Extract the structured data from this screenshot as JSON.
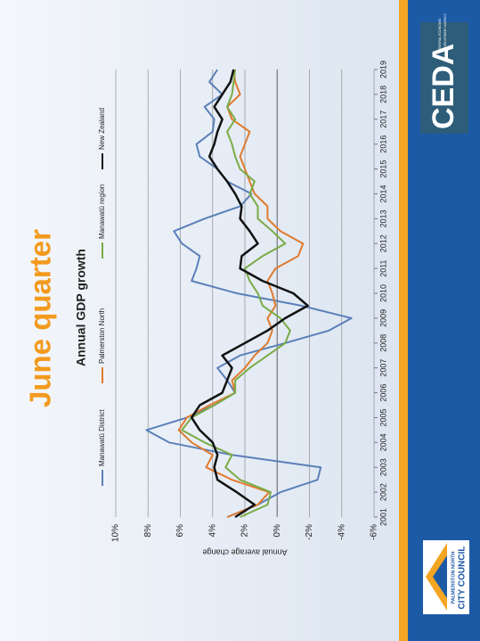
{
  "slide": {
    "heading": "June quarter",
    "ceda_logo": {
      "name": "CEDA",
      "line1": "CENTRAL ECONOMIC",
      "line2": "DEVELOPMENT AGENCY"
    },
    "council_logo": {
      "line1": "PALMERSTON NORTH",
      "line2": "CITY COUNCIL"
    }
  },
  "chart_data": {
    "type": "line",
    "title": "Annual GDP growth",
    "y_label": "Annual average change",
    "x": [
      2001,
      2001.5,
      2002,
      2002.5,
      2003,
      2003.5,
      2004,
      2004.5,
      2005,
      2005.5,
      2006,
      2006.5,
      2007,
      2007.5,
      2008,
      2008.5,
      2009,
      2009.5,
      2010,
      2010.5,
      2011,
      2011.5,
      2012,
      2012.5,
      2013,
      2013.5,
      2014,
      2014.5,
      2015,
      2015.5,
      2016,
      2016.5,
      2017,
      2017.5,
      2018,
      2018.5,
      2019
    ],
    "xlim": [
      2001,
      2019
    ],
    "xticks": [
      2001,
      2002,
      2003,
      2004,
      2005,
      2006,
      2007,
      2008,
      2009,
      2010,
      2011,
      2012,
      2013,
      2014,
      2015,
      2016,
      2017,
      2018,
      2019
    ],
    "ylim": [
      -6,
      10
    ],
    "yticks": [
      {
        "value": -6,
        "label": "-6%"
      },
      {
        "value": -4,
        "label": "-4%"
      },
      {
        "value": -2,
        "label": "-2%"
      },
      {
        "value": 0,
        "label": "0%"
      },
      {
        "value": 2,
        "label": "2%"
      },
      {
        "value": 4,
        "label": "4%"
      },
      {
        "value": 6,
        "label": "6%"
      },
      {
        "value": 8,
        "label": "8%"
      },
      {
        "value": 10,
        "label": "10%"
      }
    ],
    "grid": true,
    "series": [
      {
        "name": "Manawatū District",
        "color": "#5b80b8",
        "values": [
          3.1,
          1.2,
          -0.2,
          -2.5,
          -2.7,
          2.8,
          6.7,
          8.1,
          5.6,
          3.9,
          2.6,
          3.1,
          3.7,
          2.3,
          -0.5,
          -3.2,
          -4.6,
          -1.5,
          2.5,
          5.3,
          5.0,
          4.8,
          5.9,
          6.4,
          4.5,
          2.3,
          1.6,
          3.1,
          3.7,
          4.8,
          5.0,
          4.0,
          3.9,
          4.5,
          3.4,
          4.2,
          3.7
        ]
      },
      {
        "name": "Palmerston North",
        "color": "#e07a2e",
        "values": [
          3.1,
          1.2,
          0.5,
          2.8,
          4.4,
          4.0,
          5.3,
          6.1,
          5.6,
          4.2,
          2.6,
          2.8,
          2.0,
          1.4,
          0.6,
          0.3,
          0.6,
          0.1,
          0.3,
          0.6,
          0.1,
          -1.3,
          -1.6,
          -0.2,
          0.6,
          0.6,
          1.4,
          1.7,
          2.0,
          2.3,
          2.0,
          1.7,
          2.8,
          3.1,
          2.3,
          2.6,
          2.7
        ]
      },
      {
        "name": "Manawatū region",
        "color": "#7aab47",
        "values": [
          2.3,
          0.6,
          0.4,
          2.3,
          3.2,
          2.8,
          4.5,
          5.9,
          5.3,
          3.9,
          2.6,
          2.6,
          1.7,
          0.6,
          -0.5,
          -0.8,
          -0.2,
          0.9,
          1.2,
          1.7,
          2.0,
          0.9,
          -0.5,
          0.3,
          1.2,
          1.2,
          1.7,
          1.4,
          2.3,
          2.6,
          2.8,
          3.1,
          2.6,
          3.1,
          2.8,
          2.7,
          2.6
        ]
      },
      {
        "name": "New Zealand",
        "color": "#111111",
        "values": [
          2.6,
          1.4,
          2.5,
          3.7,
          3.9,
          3.7,
          4.0,
          4.8,
          5.3,
          4.8,
          3.4,
          3.1,
          2.8,
          3.4,
          2.0,
          0.6,
          -0.5,
          -1.9,
          -1.0,
          0.9,
          2.3,
          2.2,
          1.2,
          1.7,
          2.3,
          2.2,
          2.6,
          3.1,
          3.7,
          4.2,
          3.9,
          3.7,
          3.4,
          3.9,
          3.4,
          2.9,
          2.7
        ]
      }
    ]
  }
}
